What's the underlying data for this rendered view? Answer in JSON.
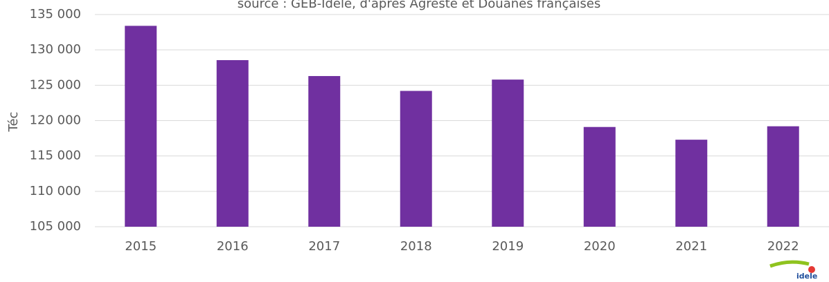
{
  "chart_data": {
    "type": "bar",
    "subtitle": "source : GEB-Idele, d'après Agreste et Douanes françaises",
    "y_label": "Téc",
    "categories": [
      "2015",
      "2016",
      "2017",
      "2018",
      "2019",
      "2020",
      "2021",
      "2022"
    ],
    "values": [
      133400,
      128550,
      126300,
      124200,
      125800,
      119100,
      117300,
      119200
    ],
    "color": "#7030a0",
    "ylim": [
      105000,
      135000
    ],
    "yticks": [
      {
        "value": 105000,
        "label": "105 000"
      },
      {
        "value": 110000,
        "label": "110 000"
      },
      {
        "value": 115000,
        "label": "115 000"
      },
      {
        "value": 120000,
        "label": "120 000"
      },
      {
        "value": 125000,
        "label": "125 000"
      },
      {
        "value": 130000,
        "label": "130 000"
      },
      {
        "value": 135000,
        "label": "135 000"
      }
    ],
    "grid": true,
    "logo": "idele"
  }
}
